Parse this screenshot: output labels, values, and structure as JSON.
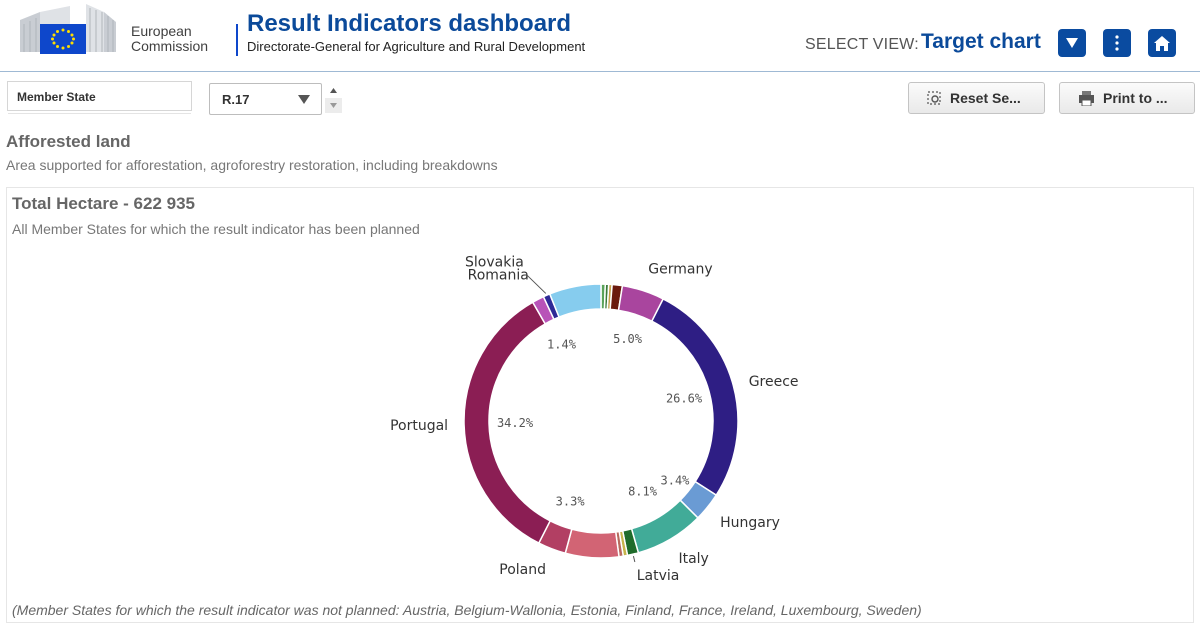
{
  "header": {
    "logo_line1": "European",
    "logo_line2": "Commission",
    "title": "Result Indicators dashboard",
    "subtitle": "Directorate-General for Agriculture and Rural Development",
    "select_view_label": "SELECT VIEW:",
    "select_view_value": "Target chart",
    "icons": [
      "chevron-down-icon",
      "more-vertical-icon",
      "home-icon"
    ],
    "accent_color": "#0a4ba0"
  },
  "filters": {
    "member_state_label": "Member State",
    "indicator_value": "R.17"
  },
  "toolbar": {
    "reset_label": "Reset Se...",
    "print_label": "Print to ..."
  },
  "kpi": {
    "title": "Afforested land",
    "subtitle": "Area supported for afforestation, agroforestry restoration, including breakdowns"
  },
  "chart_data": {
    "type": "pie",
    "title": "Total Hectare - 622 935",
    "subtitle": "All Member States for which the result indicator has been planned",
    "donut": true,
    "slices": [
      {
        "label": "",
        "value": 0.5,
        "percent_label": "",
        "color": "#5aa35a"
      },
      {
        "label": "",
        "value": 0.4,
        "percent_label": "",
        "color": "#3a7a3a"
      },
      {
        "label": "",
        "value": 0.4,
        "percent_label": "",
        "color": "#c4a04a"
      },
      {
        "label": "",
        "value": 1.2,
        "percent_label": "",
        "color": "#6b1a0e"
      },
      {
        "label": "Germany",
        "value": 5.0,
        "percent_label": "5.0%",
        "color": "#a9459e"
      },
      {
        "label": "Greece",
        "value": 26.6,
        "percent_label": "26.6%",
        "color": "#2e1e84"
      },
      {
        "label": "Hungary",
        "value": 3.4,
        "percent_label": "3.4%",
        "color": "#6a9bd4"
      },
      {
        "label": "Italy",
        "value": 8.1,
        "percent_label": "8.1%",
        "color": "#41ab98"
      },
      {
        "label": "Latvia",
        "value": 1.3,
        "percent_label": "",
        "color": "#1f6b2a"
      },
      {
        "label": "",
        "value": 0.5,
        "percent_label": "",
        "color": "#c6b44a"
      },
      {
        "label": "",
        "value": 0.5,
        "percent_label": "",
        "color": "#b86a5e"
      },
      {
        "label": "",
        "value": 6.3,
        "percent_label": "",
        "color": "#d26474"
      },
      {
        "label": "Poland",
        "value": 3.3,
        "percent_label": "3.3%",
        "color": "#b23f63"
      },
      {
        "label": "Portugal",
        "value": 34.2,
        "percent_label": "34.2%",
        "color": "#8b1e54"
      },
      {
        "label": "Romania",
        "value": 1.4,
        "percent_label": "1.4%",
        "color": "#b853b8"
      },
      {
        "label": "Slovakia",
        "value": 0.8,
        "percent_label": "",
        "color": "#2e2a96"
      },
      {
        "label": "",
        "value": 6.1,
        "percent_label": "",
        "color": "#86ccee"
      }
    ],
    "legend": "none",
    "footnote": "(Member States for which the result indicator was not planned: Austria, Belgium-Wallonia, Estonia, Finland, France, Ireland, Luxembourg, Sweden)"
  }
}
